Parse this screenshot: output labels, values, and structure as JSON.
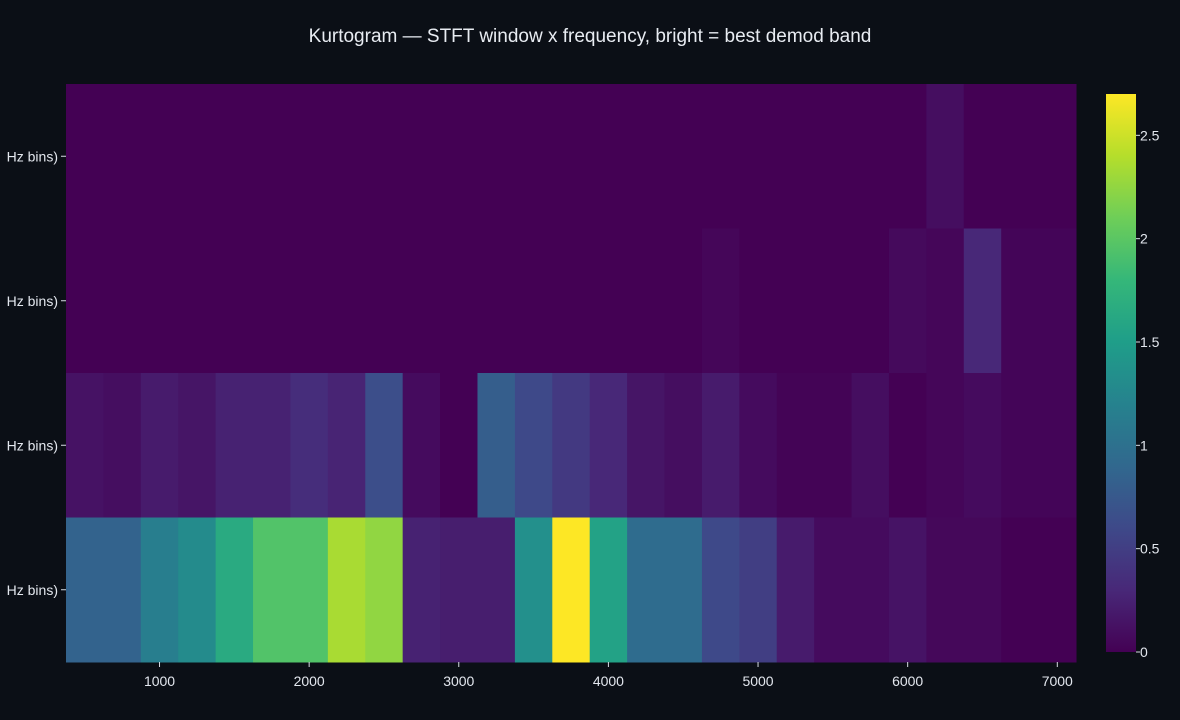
{
  "chart_data": {
    "type": "heatmap",
    "title": "Kurtogram — STFT window x frequency, bright = best demod band",
    "xlabel": "",
    "ylabel": "",
    "x_bin_width": 250,
    "x_centers": [
      500,
      750,
      1000,
      1250,
      1500,
      1750,
      2000,
      2250,
      2500,
      2750,
      3000,
      3250,
      3500,
      3750,
      4000,
      4250,
      4500,
      4750,
      5000,
      5250,
      5500,
      5750,
      6000,
      6250,
      6500,
      6750,
      7000
    ],
    "xlim": [
      375,
      7125
    ],
    "xticks": [
      1000,
      2000,
      3000,
      4000,
      5000,
      6000,
      7000
    ],
    "ytick_labels": [
      "Hz bins)",
      "Hz bins)",
      "Hz bins)",
      "Hz bins)"
    ],
    "colorscale": [
      "#440154",
      "#482878",
      "#3e4989",
      "#31688e",
      "#26828e",
      "#1f9e89",
      "#35b779",
      "#6ece58",
      "#b5de2b",
      "#fde725"
    ],
    "zmin": 0,
    "zmax": 2.7,
    "colorbar_ticks": [
      0,
      0.5,
      1,
      1.5,
      2,
      2.5
    ],
    "rows": [
      {
        "label_index": 3,
        "bins": [
          {
            "x0": 375,
            "x1": 6125,
            "value": 0.0
          },
          {
            "x0": 6125,
            "x1": 6375,
            "value": 0.1
          },
          {
            "x0": 6375,
            "x1": 7125,
            "value": 0.0
          }
        ]
      },
      {
        "label_index": 2,
        "bins": [
          {
            "x0": 375,
            "x1": 4625,
            "value": 0.0
          },
          {
            "x0": 4625,
            "x1": 4875,
            "value": 0.04
          },
          {
            "x0": 4875,
            "x1": 5875,
            "value": 0.0
          },
          {
            "x0": 5875,
            "x1": 6125,
            "value": 0.07
          },
          {
            "x0": 6125,
            "x1": 6375,
            "value": 0.04
          },
          {
            "x0": 6375,
            "x1": 6625,
            "value": 0.3
          },
          {
            "x0": 6625,
            "x1": 7125,
            "value": 0.03
          }
        ]
      },
      {
        "label_index": 1,
        "bins": [
          {
            "x0": 375,
            "x1": 625,
            "value": 0.13
          },
          {
            "x0": 625,
            "x1": 875,
            "value": 0.1
          },
          {
            "x0": 875,
            "x1": 1125,
            "value": 0.2
          },
          {
            "x0": 1125,
            "x1": 1375,
            "value": 0.15
          },
          {
            "x0": 1375,
            "x1": 1875,
            "value": 0.25
          },
          {
            "x0": 1875,
            "x1": 2125,
            "value": 0.35
          },
          {
            "x0": 2125,
            "x1": 2375,
            "value": 0.27
          },
          {
            "x0": 2375,
            "x1": 2625,
            "value": 0.65
          },
          {
            "x0": 2625,
            "x1": 2875,
            "value": 0.08
          },
          {
            "x0": 2875,
            "x1": 3125,
            "value": 0.0
          },
          {
            "x0": 3125,
            "x1": 3375,
            "value": 0.8
          },
          {
            "x0": 3375,
            "x1": 3625,
            "value": 0.6
          },
          {
            "x0": 3625,
            "x1": 3875,
            "value": 0.45
          },
          {
            "x0": 3875,
            "x1": 4125,
            "value": 0.3
          },
          {
            "x0": 4125,
            "x1": 4375,
            "value": 0.15
          },
          {
            "x0": 4375,
            "x1": 4625,
            "value": 0.1
          },
          {
            "x0": 4625,
            "x1": 4875,
            "value": 0.2
          },
          {
            "x0": 4875,
            "x1": 5125,
            "value": 0.08
          },
          {
            "x0": 5125,
            "x1": 5625,
            "value": 0.02
          },
          {
            "x0": 5625,
            "x1": 5875,
            "value": 0.1
          },
          {
            "x0": 5875,
            "x1": 6125,
            "value": 0.0
          },
          {
            "x0": 6125,
            "x1": 6375,
            "value": 0.04
          },
          {
            "x0": 6375,
            "x1": 6625,
            "value": 0.08
          },
          {
            "x0": 6625,
            "x1": 7125,
            "value": 0.03
          }
        ]
      },
      {
        "label_index": 0,
        "bins": [
          {
            "x0": 375,
            "x1": 875,
            "value": 0.85
          },
          {
            "x0": 875,
            "x1": 1125,
            "value": 1.15
          },
          {
            "x0": 1125,
            "x1": 1375,
            "value": 1.3
          },
          {
            "x0": 1375,
            "x1": 1625,
            "value": 1.65
          },
          {
            "x0": 1625,
            "x1": 2125,
            "value": 1.95
          },
          {
            "x0": 2125,
            "x1": 2375,
            "value": 2.35
          },
          {
            "x0": 2375,
            "x1": 2625,
            "value": 2.25
          },
          {
            "x0": 2625,
            "x1": 2875,
            "value": 0.25
          },
          {
            "x0": 2875,
            "x1": 3375,
            "value": 0.22
          },
          {
            "x0": 3375,
            "x1": 3625,
            "value": 1.35
          },
          {
            "x0": 3625,
            "x1": 3875,
            "value": 2.7
          },
          {
            "x0": 3875,
            "x1": 4125,
            "value": 1.55
          },
          {
            "x0": 4125,
            "x1": 4625,
            "value": 0.95
          },
          {
            "x0": 4625,
            "x1": 4875,
            "value": 0.6
          },
          {
            "x0": 4875,
            "x1": 5125,
            "value": 0.5
          },
          {
            "x0": 5125,
            "x1": 5375,
            "value": 0.2
          },
          {
            "x0": 5375,
            "x1": 5875,
            "value": 0.08
          },
          {
            "x0": 5875,
            "x1": 6125,
            "value": 0.14
          },
          {
            "x0": 6125,
            "x1": 6625,
            "value": 0.05
          },
          {
            "x0": 6625,
            "x1": 7125,
            "value": 0.0
          }
        ]
      }
    ]
  }
}
